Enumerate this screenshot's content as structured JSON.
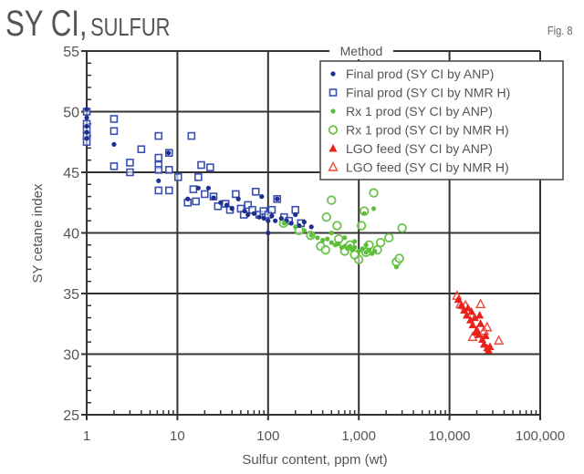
{
  "header": {
    "title_main": "SY CI,",
    "title_sub": "SULFUR",
    "fig_label": "Fig. 8"
  },
  "chart_data": {
    "type": "scatter",
    "xlabel": "Sulfur content, ppm (wt)",
    "ylabel": "SY cetane index",
    "xscale": "log",
    "xlim": [
      1,
      100000
    ],
    "ylim": [
      25,
      55
    ],
    "xticks": [
      1,
      10,
      100,
      1000,
      10000,
      100000
    ],
    "xtick_labels": [
      "1",
      "10",
      "100",
      "1,000",
      "10,000",
      "100,000"
    ],
    "yticks": [
      25,
      30,
      35,
      40,
      45,
      50,
      55
    ],
    "ytick_labels": [
      "25",
      "30",
      "35",
      "40",
      "45",
      "50",
      "55"
    ],
    "grid": true,
    "legend": {
      "title": "Method",
      "placement": "top-right"
    },
    "series": [
      {
        "name": "Final prod (SY CI by ANP)",
        "marker": "dot",
        "color": "#1f2f8f",
        "points": [
          [
            1,
            50.2
          ],
          [
            1,
            49.5
          ],
          [
            1,
            48.8
          ],
          [
            1,
            48.3
          ],
          [
            1,
            47.8
          ],
          [
            2,
            47.3
          ],
          [
            6.2,
            44.3
          ],
          [
            8,
            46.6
          ],
          [
            13,
            42.8
          ],
          [
            17,
            43.7
          ],
          [
            22,
            43.7
          ],
          [
            25,
            42.9
          ],
          [
            30,
            42.5
          ],
          [
            35,
            42.3
          ],
          [
            40,
            42.0
          ],
          [
            47,
            42.8
          ],
          [
            55,
            41.8
          ],
          [
            60,
            41.5
          ],
          [
            70,
            41.6
          ],
          [
            80,
            41.3
          ],
          [
            85,
            43.0
          ],
          [
            90,
            41.2
          ],
          [
            100,
            40.0
          ],
          [
            100,
            41.0
          ],
          [
            110,
            41.4
          ],
          [
            120,
            41.0
          ],
          [
            126,
            42.8
          ],
          [
            140,
            41.2
          ],
          [
            160,
            41.0
          ],
          [
            180,
            40.8
          ],
          [
            200,
            41.5
          ],
          [
            220,
            40.6
          ],
          [
            250,
            40.9
          ],
          [
            300,
            40.5
          ]
        ]
      },
      {
        "name": "Final prod (SY CI by NMR H)",
        "marker": "open-square",
        "color": "#3a4fb0",
        "points": [
          [
            1,
            50
          ],
          [
            1,
            49
          ],
          [
            1,
            48.5
          ],
          [
            1,
            48
          ],
          [
            1,
            47.5
          ],
          [
            2,
            49.4
          ],
          [
            2,
            48.4
          ],
          [
            2,
            45.5
          ],
          [
            3,
            45.8
          ],
          [
            3,
            45
          ],
          [
            4,
            46.9
          ],
          [
            6.2,
            48
          ],
          [
            6.2,
            46.2
          ],
          [
            6.2,
            45.6
          ],
          [
            6.2,
            45.2
          ],
          [
            6.2,
            43.5
          ],
          [
            8.1,
            46.6
          ],
          [
            8.1,
            45.2
          ],
          [
            8.1,
            43.5
          ],
          [
            10.2,
            44.6
          ],
          [
            13,
            42.5
          ],
          [
            14.3,
            48
          ],
          [
            15,
            43.6
          ],
          [
            16,
            42.6
          ],
          [
            17,
            44.6
          ],
          [
            18.3,
            45.6
          ],
          [
            20,
            43.2
          ],
          [
            23,
            45.4
          ],
          [
            25,
            43
          ],
          [
            28,
            42.2
          ],
          [
            34,
            42.4
          ],
          [
            38,
            41.9
          ],
          [
            44,
            43.2
          ],
          [
            50,
            42.0
          ],
          [
            54,
            41.5
          ],
          [
            60,
            42.3
          ],
          [
            67,
            41.9
          ],
          [
            73,
            43.4
          ],
          [
            80,
            41.5
          ],
          [
            89,
            41.8
          ],
          [
            100,
            41.5
          ],
          [
            110,
            41.9
          ],
          [
            126,
            42.8
          ],
          [
            150,
            41.3
          ],
          [
            170,
            41.0
          ],
          [
            200,
            41.9
          ],
          [
            230,
            40.8
          ]
        ]
      },
      {
        "name": "Rx 1 prod (SY CI by ANP)",
        "marker": "dot",
        "color": "#5cbf3a",
        "points": [
          [
            150,
            40.8
          ],
          [
            200,
            40.5
          ],
          [
            250,
            40.2
          ],
          [
            300,
            39.8
          ],
          [
            350,
            39.6
          ],
          [
            400,
            39.4
          ],
          [
            450,
            39.5
          ],
          [
            500,
            39.2
          ],
          [
            550,
            39.0
          ],
          [
            600,
            39.1
          ],
          [
            650,
            38.8
          ],
          [
            700,
            38.9
          ],
          [
            750,
            38.7
          ],
          [
            800,
            38.9
          ],
          [
            850,
            38.6
          ],
          [
            900,
            38.8
          ],
          [
            1000,
            38.5
          ],
          [
            1100,
            38.7
          ],
          [
            1200,
            38.4
          ],
          [
            1300,
            38.6
          ],
          [
            1400,
            38.3
          ],
          [
            1500,
            38.5
          ],
          [
            1150,
            41.6
          ],
          [
            1460,
            42.0
          ],
          [
            2600,
            37.2
          ],
          [
            500,
            40.0
          ],
          [
            700,
            39.6
          ],
          [
            900,
            39.3
          ],
          [
            1200,
            39.0
          ]
        ]
      },
      {
        "name": "Rx 1 prod (SY CI by NMR H)",
        "marker": "open-circle",
        "color": "#6ac24a",
        "points": [
          [
            148,
            40.8
          ],
          [
            220,
            40.2
          ],
          [
            295,
            39.8
          ],
          [
            380,
            38.9
          ],
          [
            430,
            38.6
          ],
          [
            440,
            41.3
          ],
          [
            500,
            42.7
          ],
          [
            575,
            40.6
          ],
          [
            600,
            39.5
          ],
          [
            800,
            39.0
          ],
          [
            1000,
            37.8
          ],
          [
            1070,
            40.6
          ],
          [
            1150,
            41.8
          ],
          [
            1300,
            39.0
          ],
          [
            1460,
            43.3
          ],
          [
            1600,
            38.6
          ],
          [
            1740,
            39.2
          ],
          [
            2150,
            39.6
          ],
          [
            2600,
            37.6
          ],
          [
            2800,
            37.9
          ],
          [
            3000,
            40.4
          ],
          [
            700,
            38.5
          ],
          [
            900,
            38.2
          ],
          [
            1200,
            38.4
          ]
        ]
      },
      {
        "name": "LGO feed (SY CI by ANP)",
        "marker": "triangle",
        "color": "#e8231c",
        "points": [
          [
            12500,
            34.5
          ],
          [
            13500,
            34
          ],
          [
            14500,
            33.6
          ],
          [
            15500,
            33.2
          ],
          [
            16000,
            33.8
          ],
          [
            17000,
            32.8
          ],
          [
            18000,
            32.4
          ],
          [
            19000,
            33.0
          ],
          [
            20000,
            32.0
          ],
          [
            21000,
            31.6
          ],
          [
            22000,
            32.5
          ],
          [
            23000,
            31.2
          ],
          [
            24000,
            30.8
          ],
          [
            25000,
            31.5
          ],
          [
            26000,
            30.5
          ],
          [
            27000,
            30.3
          ],
          [
            28000,
            30.6
          ],
          [
            19500,
            31.8
          ],
          [
            21500,
            33.2
          ],
          [
            17500,
            33.5
          ]
        ]
      },
      {
        "name": "LGO feed (SY CI by NMR H)",
        "marker": "open-triangle",
        "color": "#ee4a3c",
        "points": [
          [
            12100,
            34.8
          ],
          [
            13200,
            34.1
          ],
          [
            22000,
            34.1
          ],
          [
            26000,
            32.2
          ],
          [
            35000,
            31.1
          ],
          [
            18000,
            31.4
          ],
          [
            15000,
            34.0
          ],
          [
            24000,
            31.9
          ]
        ]
      }
    ]
  }
}
